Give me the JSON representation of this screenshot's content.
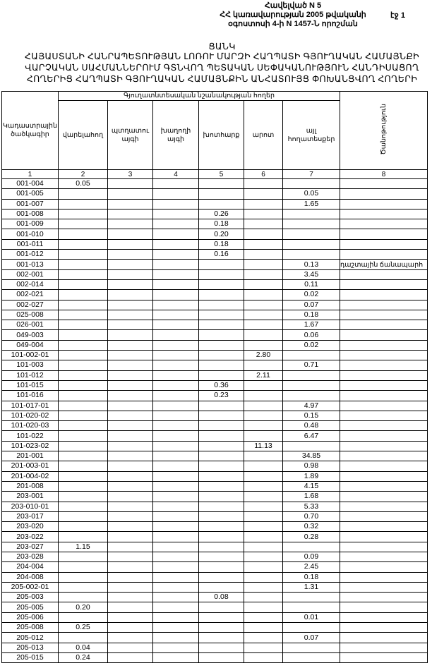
{
  "header": {
    "line1": "Հավելված N 5",
    "line2": "ՀՀ կառավարության 2005 թվականի",
    "line3": "օգոստոսի 4-ի N 1457-Ն որոշման",
    "page": "էջ 1"
  },
  "title": {
    "word": "ՑԱՆԿ",
    "line1": "ՀԱՅԱՍՏԱՆԻ ՀԱՆՐԱՊԵՏՈՒԹՅԱՆ ԼՈՌՈՒ ՄԱՐԶԻ ՀԱՂՊԱՏԻ ԳՅՈՒՂԱԿԱՆ ՀԱՄԱՅՆՔԻ",
    "line2": "ՎԱՐՉԱԿԱՆ ՍԱՀՄԱՆՆԵՐՈՒՄ ԳՏՆՎՈՂ ՊԵՏԱԿԱՆ ՍԵՓԱԿԱՆՈՒԹՅՈՒՆ ՀԱՆԴԻՍԱՑՈՂ",
    "line3": "ՀՈՂԵՐԻՑ ՀԱՂՊԱՏԻ ԳՅՈՒՂԱԿԱՆ ՀԱՄԱՅՆՔԻՆ ԱՆՀԱՏՈՒՅՑ ՓՈԽԱՆՑՎՈՂ ՀՈՂԵՐԻ"
  },
  "table": {
    "group_header": "Գյուղատնտեսական նշանակության հողեր",
    "columns": [
      "Կադաստրային ծածկագիր",
      "վարելահող",
      "պտղատու այգի",
      "խաղողի այգի",
      "խոտհարք",
      "արոտ",
      "այլ հողատեսքեր",
      "Ծանոթություն"
    ],
    "column_numbers": [
      "1",
      "2",
      "3",
      "4",
      "5",
      "6",
      "7",
      "8"
    ],
    "rows": [
      [
        "001-004",
        "0.05",
        "",
        "",
        "",
        "",
        "",
        ""
      ],
      [
        "001-005",
        "",
        "",
        "",
        "",
        "",
        "0.05",
        ""
      ],
      [
        "001-007",
        "",
        "",
        "",
        "",
        "",
        "1.65",
        ""
      ],
      [
        "001-008",
        "",
        "",
        "",
        "0.26",
        "",
        "",
        ""
      ],
      [
        "001-009",
        "",
        "",
        "",
        "0.18",
        "",
        "",
        ""
      ],
      [
        "001-010",
        "",
        "",
        "",
        "0.20",
        "",
        "",
        ""
      ],
      [
        "001-011",
        "",
        "",
        "",
        "0.18",
        "",
        "",
        ""
      ],
      [
        "001-012",
        "",
        "",
        "",
        "0.16",
        "",
        "",
        ""
      ],
      [
        "001-013",
        "",
        "",
        "",
        "",
        "",
        "0.13",
        "դաշտային ճանապարհ"
      ],
      [
        "002-001",
        "",
        "",
        "",
        "",
        "",
        "3.45",
        ""
      ],
      [
        "002-014",
        "",
        "",
        "",
        "",
        "",
        "0.11",
        ""
      ],
      [
        "002-021",
        "",
        "",
        "",
        "",
        "",
        "0.02",
        ""
      ],
      [
        "002-027",
        "",
        "",
        "",
        "",
        "",
        "0.07",
        ""
      ],
      [
        "025-008",
        "",
        "",
        "",
        "",
        "",
        "0.18",
        ""
      ],
      [
        "026-001",
        "",
        "",
        "",
        "",
        "",
        "1.67",
        ""
      ],
      [
        "049-003",
        "",
        "",
        "",
        "",
        "",
        "0.06",
        ""
      ],
      [
        "049-004",
        "",
        "",
        "",
        "",
        "",
        "0.02",
        ""
      ],
      [
        "101-002-01",
        "",
        "",
        "",
        "",
        "2.80",
        "",
        ""
      ],
      [
        "101-003",
        "",
        "",
        "",
        "",
        "",
        "0.71",
        ""
      ],
      [
        "101-012",
        "",
        "",
        "",
        "",
        "2.11",
        "",
        ""
      ],
      [
        "101-015",
        "",
        "",
        "",
        "0.36",
        "",
        "",
        ""
      ],
      [
        "101-016",
        "",
        "",
        "",
        "0.23",
        "",
        "",
        ""
      ],
      [
        "101-017-01",
        "",
        "",
        "",
        "",
        "",
        "4.97",
        ""
      ],
      [
        "101-020-02",
        "",
        "",
        "",
        "",
        "",
        "0.15",
        ""
      ],
      [
        "101-020-03",
        "",
        "",
        "",
        "",
        "",
        "0.48",
        ""
      ],
      [
        "101-022",
        "",
        "",
        "",
        "",
        "",
        "6.47",
        ""
      ],
      [
        "101-023-02",
        "",
        "",
        "",
        "",
        "11.13",
        "",
        ""
      ],
      [
        "201-001",
        "",
        "",
        "",
        "",
        "",
        "34.85",
        ""
      ],
      [
        "201-003-01",
        "",
        "",
        "",
        "",
        "",
        "0.98",
        ""
      ],
      [
        "201-004-02",
        "",
        "",
        "",
        "",
        "",
        "1.89",
        ""
      ],
      [
        "201-008",
        "",
        "",
        "",
        "",
        "",
        "4.15",
        ""
      ],
      [
        "203-001",
        "",
        "",
        "",
        "",
        "",
        "1.68",
        ""
      ],
      [
        "203-010-01",
        "",
        "",
        "",
        "",
        "",
        "5.33",
        ""
      ],
      [
        "203-017",
        "",
        "",
        "",
        "",
        "",
        "0.70",
        ""
      ],
      [
        "203-020",
        "",
        "",
        "",
        "",
        "",
        "0.32",
        ""
      ],
      [
        "203-022",
        "",
        "",
        "",
        "",
        "",
        "0.28",
        ""
      ],
      [
        "203-027",
        "1.15",
        "",
        "",
        "",
        "",
        "",
        ""
      ],
      [
        "203-028",
        "",
        "",
        "",
        "",
        "",
        "0.09",
        ""
      ],
      [
        "204-004",
        "",
        "",
        "",
        "",
        "",
        "2.45",
        ""
      ],
      [
        "204-008",
        "",
        "",
        "",
        "",
        "",
        "0.18",
        ""
      ],
      [
        "205-002-01",
        "",
        "",
        "",
        "",
        "",
        "1.31",
        ""
      ],
      [
        "205-003",
        "",
        "",
        "",
        "0.08",
        "",
        "",
        ""
      ],
      [
        "205-005",
        "0.20",
        "",
        "",
        "",
        "",
        "",
        ""
      ],
      [
        "205-006",
        "",
        "",
        "",
        "",
        "",
        "0.01",
        ""
      ],
      [
        "205-008",
        "0.25",
        "",
        "",
        "",
        "",
        "",
        ""
      ],
      [
        "205-012",
        "",
        "",
        "",
        "",
        "",
        "0.07",
        ""
      ],
      [
        "205-013",
        "0.04",
        "",
        "",
        "",
        "",
        "",
        ""
      ],
      [
        "205-015",
        "0.24",
        "",
        "",
        "",
        "",
        "",
        ""
      ]
    ]
  }
}
